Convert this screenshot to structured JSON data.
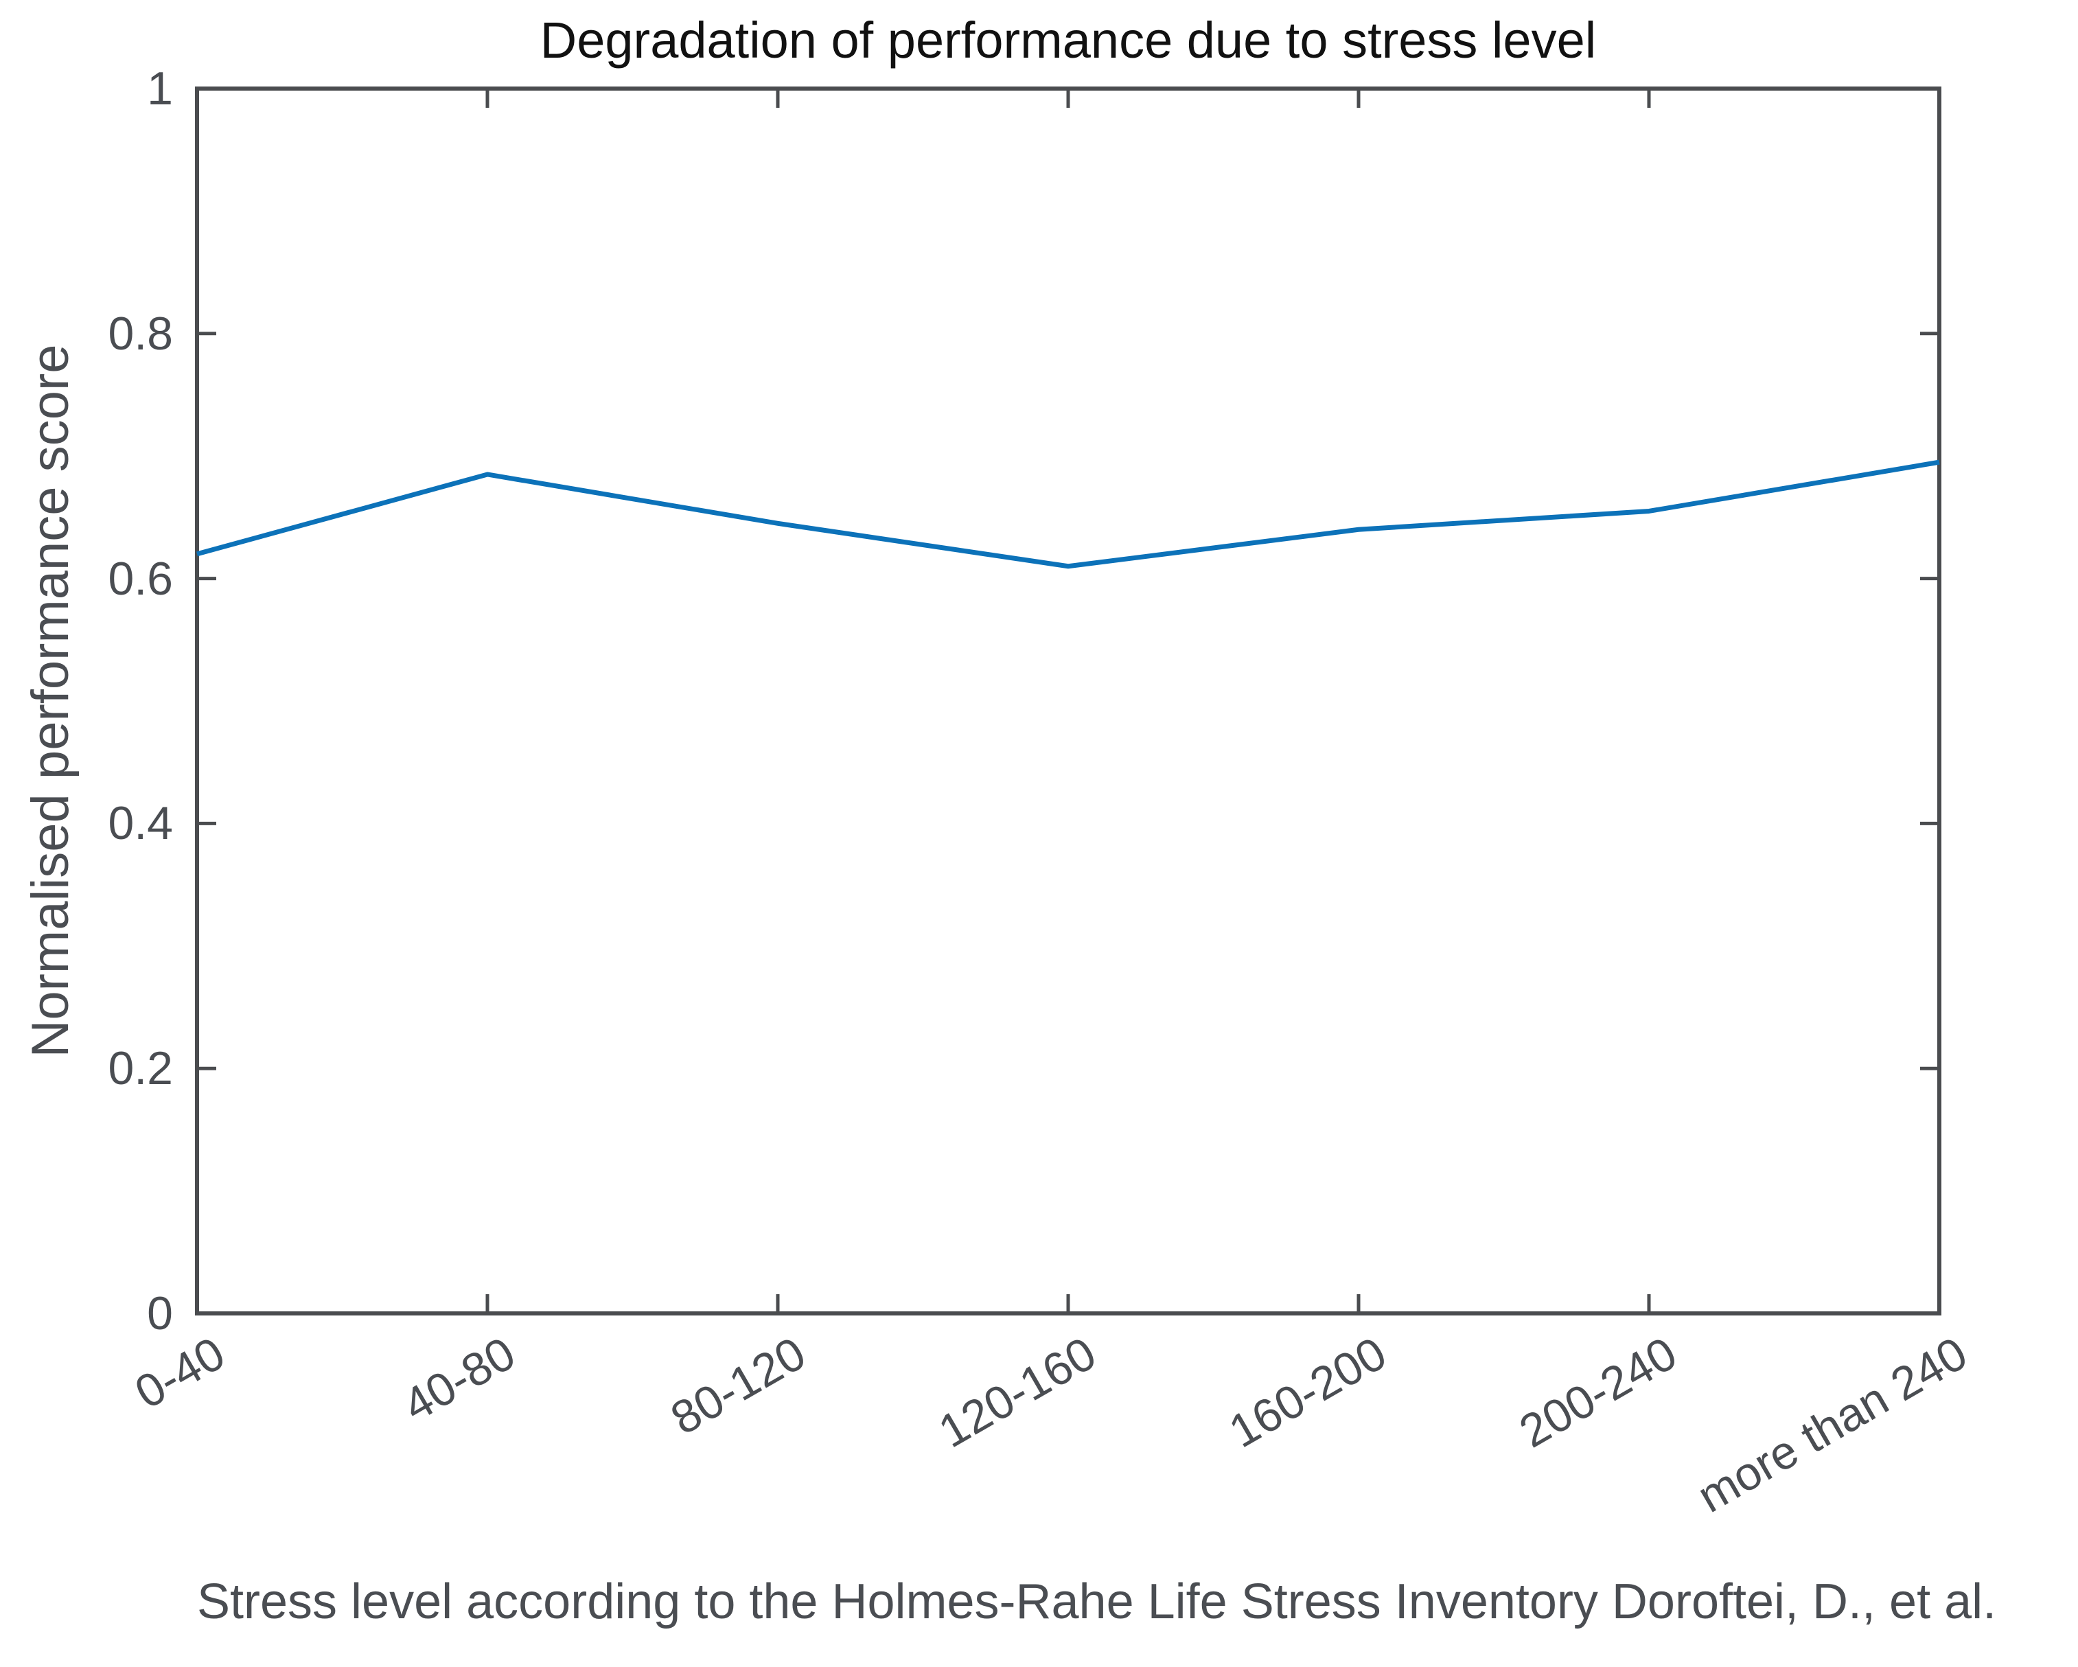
{
  "chart_data": {
    "type": "line",
    "title": "Degradation of performance due to stress level",
    "xlabel": "Stress level according to the Holmes-Rahe Life Stress Inventory Doroftei, D., et al.",
    "ylabel": "Normalised performance score",
    "categories": [
      "0-40",
      "40-80",
      "80-120",
      "120-160",
      "160-200",
      "200-240",
      "more than 240"
    ],
    "series": [
      {
        "name": "Normalised performance score",
        "values": [
          0.62,
          0.685,
          0.645,
          0.61,
          0.64,
          0.655,
          0.695
        ]
      }
    ],
    "y_ticks": [
      "0",
      "0.2",
      "0.4",
      "0.6",
      "0.8",
      "1"
    ],
    "y_tick_values": [
      0,
      0.2,
      0.4,
      0.6,
      0.8,
      1
    ],
    "ylim": [
      0,
      1
    ],
    "xtick_rotation_deg": 30,
    "grid": "off",
    "legend": "none",
    "box": "on",
    "colors": {
      "line": "#0c72b9",
      "axis": "#4a4c4f",
      "labels": "#4a4d52",
      "title": "#111111",
      "background": "#ffffff"
    }
  }
}
